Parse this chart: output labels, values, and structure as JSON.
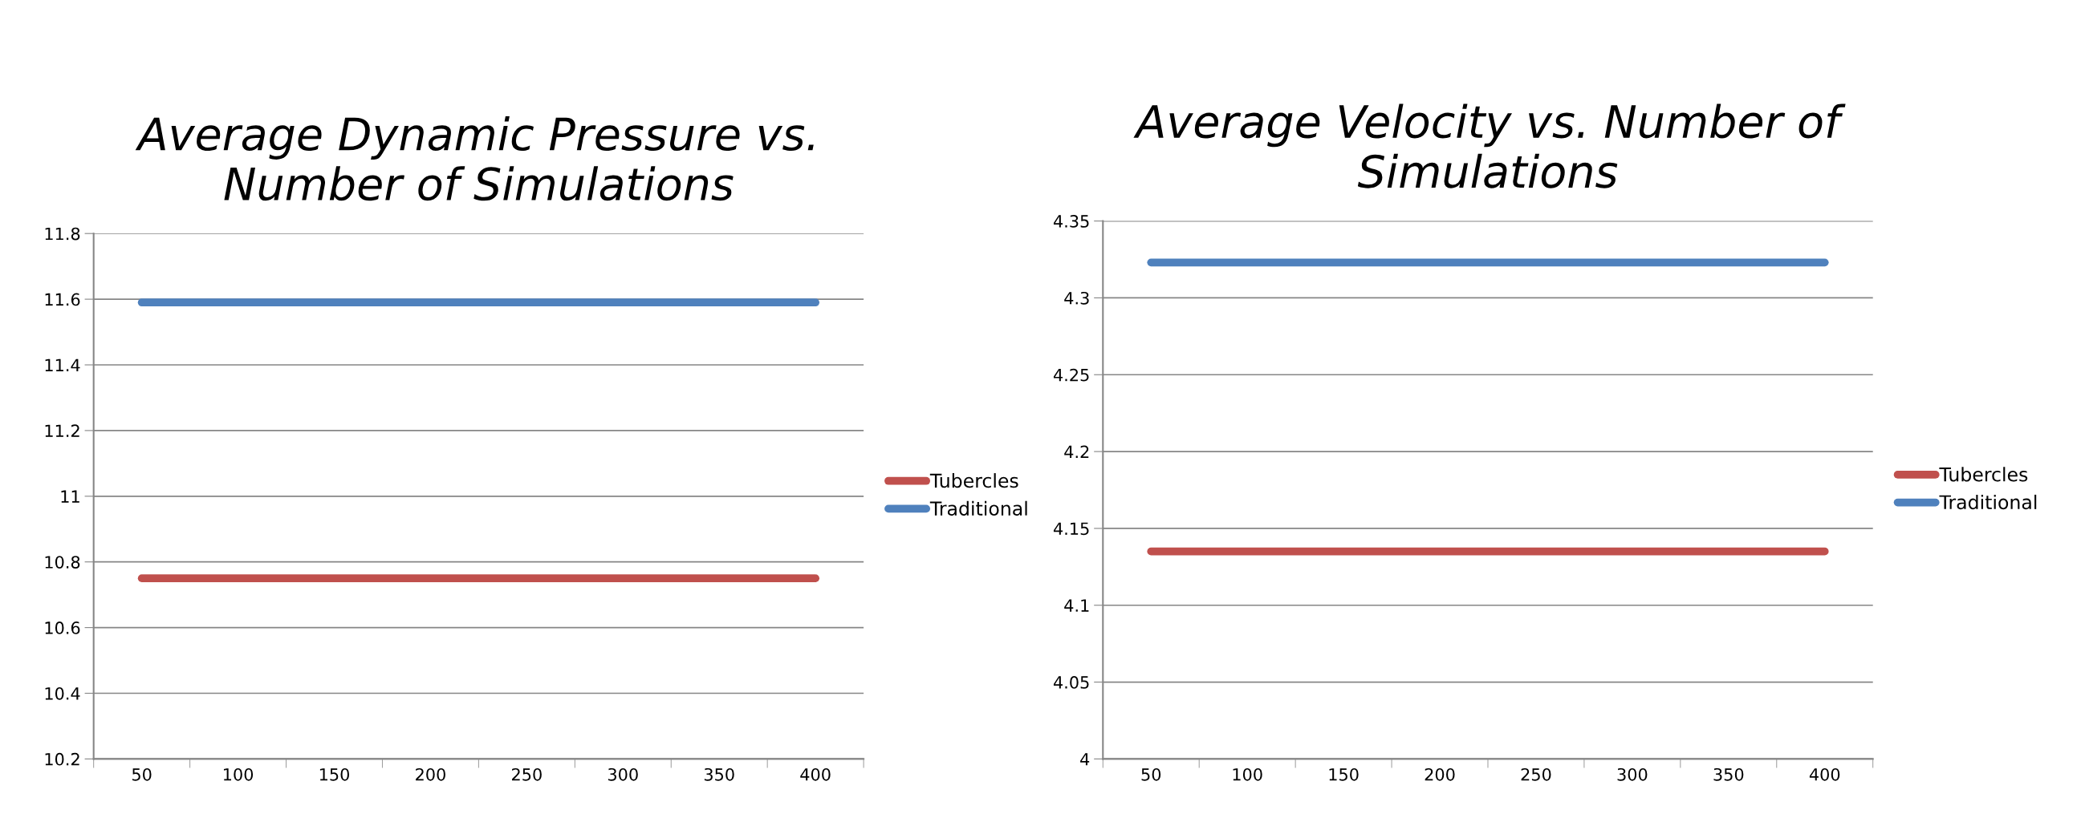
{
  "chart_data": [
    {
      "type": "line",
      "title": "Average Dynamic Pressure vs.\nNumber of Simulations",
      "categories": [
        "50",
        "100",
        "150",
        "200",
        "250",
        "300",
        "350",
        "400"
      ],
      "series": [
        {
          "name": "Tubercles",
          "color": "#c0504d",
          "values": [
            10.75,
            10.75,
            10.75,
            10.75,
            10.75,
            10.75,
            10.75,
            10.75
          ]
        },
        {
          "name": "Traditional",
          "color": "#4f81bd",
          "values": [
            11.59,
            11.59,
            11.59,
            11.59,
            11.59,
            11.59,
            11.59,
            11.59
          ]
        }
      ],
      "ylim": [
        10.2,
        11.8
      ],
      "yticks": [
        10.2,
        10.4,
        10.6,
        10.8,
        11,
        11.2,
        11.4,
        11.6,
        11.8
      ],
      "grid": "y",
      "legend": "right",
      "marker": "none",
      "line_style": "solid"
    },
    {
      "type": "line",
      "title": "Average Velocity vs. Number of\nSimulations",
      "categories": [
        "50",
        "100",
        "150",
        "200",
        "250",
        "300",
        "350",
        "400"
      ],
      "series": [
        {
          "name": "Tubercles",
          "color": "#c0504d",
          "values": [
            4.135,
            4.135,
            4.135,
            4.135,
            4.135,
            4.135,
            4.135,
            4.135
          ]
        },
        {
          "name": "Traditional",
          "color": "#4f81bd",
          "values": [
            4.323,
            4.323,
            4.323,
            4.323,
            4.323,
            4.323,
            4.323,
            4.323
          ]
        }
      ],
      "ylim": [
        4,
        4.35
      ],
      "yticks": [
        4,
        4.05,
        4.1,
        4.15,
        4.2,
        4.25,
        4.3,
        4.35
      ],
      "grid": "y",
      "legend": "right",
      "marker": "none",
      "line_style": "solid"
    }
  ]
}
